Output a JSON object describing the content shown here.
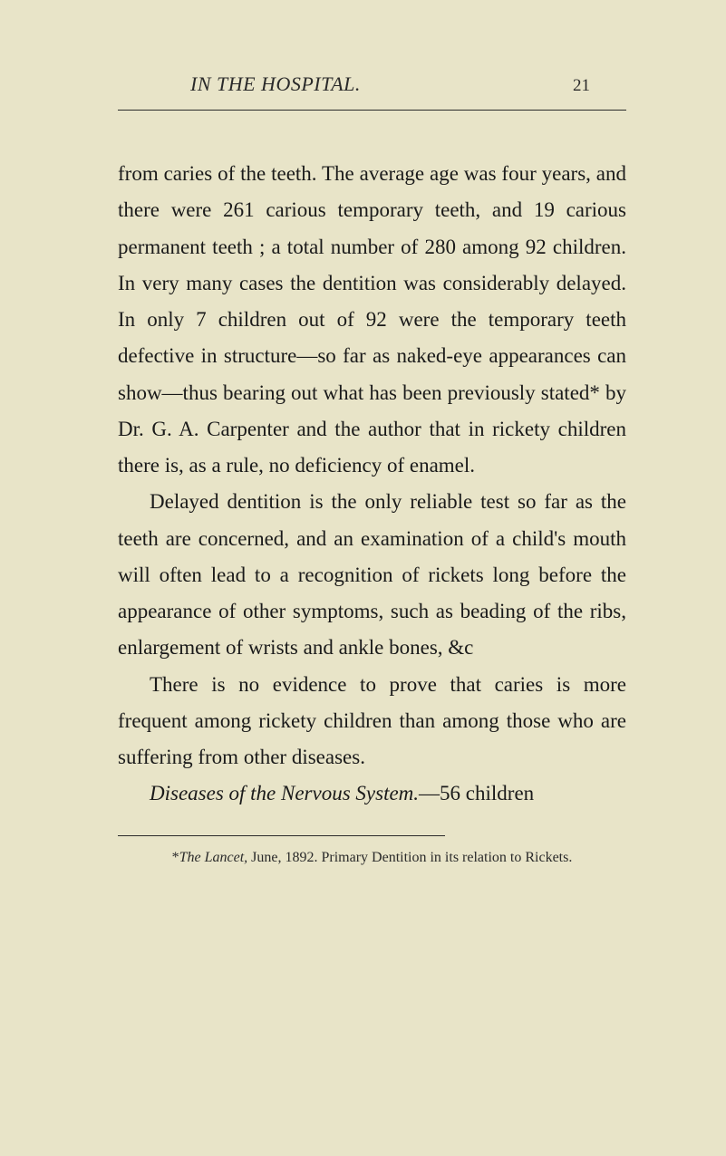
{
  "page": {
    "header_title": "IN THE HOSPITAL.",
    "page_number": "21",
    "paragraphs": {
      "p1": "from caries of the teeth. The average age was four years, and there were 261 carious temporary teeth, and 19 carious permanent teeth ; a total number of 280 among 92 chil­dren. In very many cases the dentition was considerably delayed. In only 7 children out of 92 were the temporary teeth defective in structure—so far as naked-eye appearances can show—thus bearing out what has been pre­viously stated* by Dr. G. A. Carpenter and the author that in rickety children there is, as a rule, no deficiency of enamel.",
      "p2": "Delayed dentition is the only reliable test so far as the teeth are concerned, and an examin­ation of a child's mouth will often lead to a recognition of rickets long before the appear­ance of other symptoms, such as beading of the ribs, enlargement of wrists and ankle bones, &c",
      "p3": "There is no evidence to prove that caries is more frequent among rickety children than among those who are suffering from other diseases.",
      "p4_italic_prefix": "Diseases of the Nervous System.",
      "p4_suffix": "—56 children"
    },
    "footnote": {
      "marker": "*",
      "italic_source": "The Lancet,",
      "remainder": " June, 1892. Primary Dentition in its relation to Rickets."
    },
    "colors": {
      "background": "#e8e4c8",
      "text": "#1a1a1a",
      "text_secondary": "#2a2a2a",
      "edge_dark": "#1a1610"
    },
    "typography": {
      "body_fontsize": 23,
      "header_fontsize": 22,
      "pagenum_fontsize": 19,
      "footnote_fontsize": 16,
      "line_height": 1.75
    }
  }
}
